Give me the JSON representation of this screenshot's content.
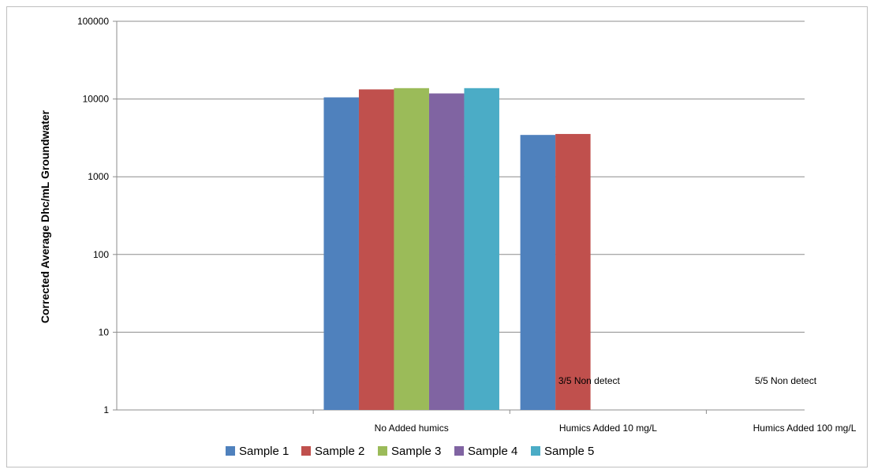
{
  "chart_data": {
    "type": "bar",
    "y_scale": "log",
    "ylim": [
      1,
      100000
    ],
    "yticks": [
      "1",
      "10",
      "100",
      "1000",
      "10000",
      "100000"
    ],
    "ytick_values": [
      1,
      10,
      100,
      1000,
      10000,
      100000
    ],
    "ylabel": "Corrected Average Dhc/mL Groundwater",
    "xlabel": "",
    "title": "",
    "categories": [
      "",
      "No Added humics",
      "Humics Added 10 mg/L",
      "Humics Added 100 mg/L"
    ],
    "series": [
      {
        "name": "Sample 1",
        "color": "#4F81BD",
        "values": [
          null,
          10500,
          3450,
          null
        ]
      },
      {
        "name": "Sample 2",
        "color": "#C0504D",
        "values": [
          null,
          13300,
          3550,
          null
        ]
      },
      {
        "name": "Sample 3",
        "color": "#9BBB59",
        "values": [
          null,
          13800,
          null,
          null
        ]
      },
      {
        "name": "Sample 4",
        "color": "#8064A2",
        "values": [
          null,
          11800,
          null,
          null
        ]
      },
      {
        "name": "Sample 5",
        "color": "#4BACC6",
        "values": [
          null,
          13800,
          null,
          null
        ]
      }
    ],
    "annotations": [
      {
        "category_index": 2,
        "text": "3/5 Non detect"
      },
      {
        "category_index": 3,
        "text": "5/5 Non detect"
      }
    ],
    "grid": true,
    "legend_position": "bottom"
  }
}
